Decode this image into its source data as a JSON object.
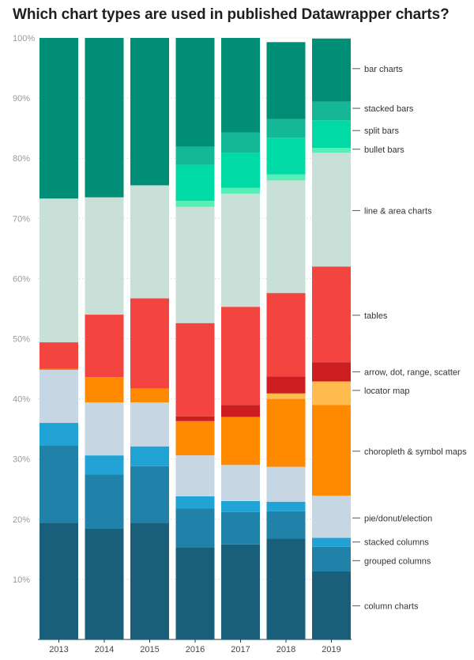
{
  "chart_data": {
    "type": "bar",
    "stacked": true,
    "normalized": true,
    "title": "Which chart types are used in published Datawrapper charts?",
    "xlabel": "",
    "ylabel": "",
    "categories": [
      "2013",
      "2014",
      "2015",
      "2016",
      "2017",
      "2018",
      "2019"
    ],
    "ylim": [
      0,
      100
    ],
    "yticks": [
      10,
      20,
      30,
      40,
      50,
      60,
      70,
      80,
      90,
      100
    ],
    "ytick_labels": [
      "10%",
      "20%",
      "30%",
      "40%",
      "50%",
      "60%",
      "70%",
      "80%",
      "90%",
      "100%"
    ],
    "grid": true,
    "legend_placement": "right (direct labels)",
    "series": [
      {
        "name": "column charts",
        "color": "#1a5f7a",
        "values": [
          19.4,
          18.4,
          19.4,
          15.3,
          15.8,
          16.8,
          11.3
        ]
      },
      {
        "name": "grouped columns",
        "color": "#2081a9",
        "values": [
          12.9,
          9.0,
          9.4,
          6.5,
          5.4,
          4.5,
          4.1
        ]
      },
      {
        "name": "stacked columns",
        "color": "#21a3d6",
        "values": [
          3.7,
          3.2,
          3.3,
          2.0,
          1.8,
          1.6,
          1.5
        ]
      },
      {
        "name": "pie/donut/election",
        "color": "#c6d7e3",
        "values": [
          8.8,
          8.8,
          7.3,
          6.8,
          6.0,
          5.8,
          7.0
        ]
      },
      {
        "name": "choropleth & symbol maps",
        "color": "#ff8a00",
        "values": [
          0.2,
          4.2,
          2.3,
          5.7,
          8.0,
          11.3,
          15.1
        ]
      },
      {
        "name": "locator map",
        "color": "#ffbb4c",
        "values": [
          0.0,
          0.0,
          0.0,
          0.0,
          0.0,
          0.9,
          3.9
        ]
      },
      {
        "name": "arrow, dot, range, scatter",
        "color": "#cc1d21",
        "values": [
          0.0,
          0.0,
          0.0,
          0.8,
          2.0,
          2.8,
          3.2
        ]
      },
      {
        "name": "tables",
        "color": "#f4443f",
        "values": [
          4.4,
          10.4,
          15.0,
          15.5,
          16.3,
          13.9,
          15.9
        ]
      },
      {
        "name": "line & area charts",
        "color": "#c8e0d8",
        "values": [
          23.9,
          19.5,
          18.8,
          19.3,
          18.8,
          18.7,
          18.9
        ]
      },
      {
        "name": "bullet bars",
        "color": "#58efb7",
        "values": [
          0.0,
          0.0,
          0.0,
          1.0,
          1.0,
          1.0,
          0.8
        ]
      },
      {
        "name": "split bars",
        "color": "#00dba5",
        "values": [
          0.0,
          0.0,
          0.0,
          6.0,
          5.8,
          6.1,
          4.6
        ]
      },
      {
        "name": "stacked bars",
        "color": "#14b897",
        "values": [
          0.0,
          0.0,
          0.0,
          3.0,
          3.4,
          3.1,
          3.1
        ]
      },
      {
        "name": "bar charts",
        "color": "#008f76",
        "values": [
          26.7,
          26.5,
          24.5,
          18.1,
          15.7,
          12.8,
          10.5
        ]
      }
    ],
    "label_y_values": {
      "bar charts": 94.9,
      "stacked bars": 88.3,
      "split bars": 84.6,
      "bullet bars": 81.5,
      "line & area charts": 71.3,
      "tables": 53.9,
      "arrow, dot, range, scatter": 44.5,
      "locator map": 41.4,
      "choropleth & symbol maps": 31.3,
      "pie/donut/election": 20.2,
      "stacked columns": 16.2,
      "grouped columns": 13.1,
      "column charts": 5.6
    }
  }
}
